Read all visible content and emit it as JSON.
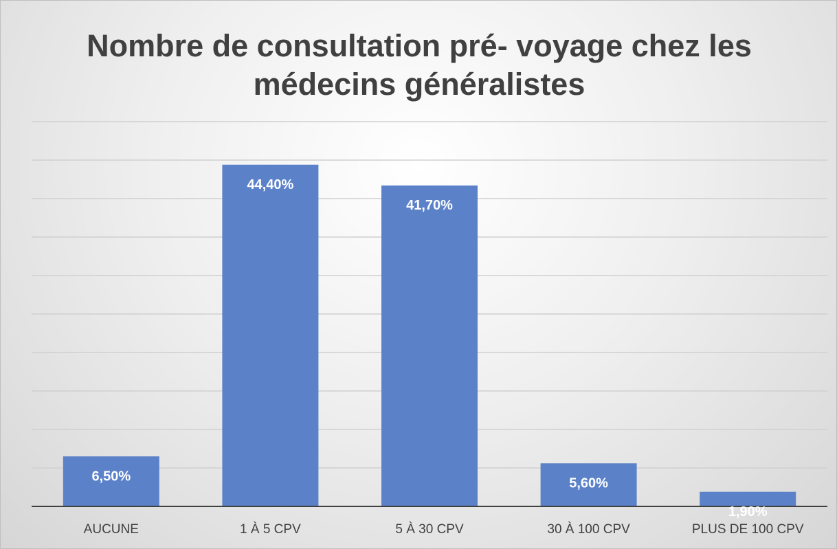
{
  "chart_data": {
    "type": "bar",
    "title": "Nombre de consultation pré- voyage chez les médecins généralistes",
    "categories": [
      "AUCUNE",
      "1 À 5 CPV",
      "5 À 30 CPV",
      "30 À 100 CPV",
      "PLUS DE 100 CPV"
    ],
    "values": [
      6.5,
      44.4,
      41.7,
      5.6,
      1.9
    ],
    "value_labels": [
      "6,50%",
      "44,40%",
      "41,70%",
      "5,60%",
      "1,90%"
    ],
    "color": "#5b82c9",
    "ylim": [
      0,
      50
    ],
    "yticks": [
      0,
      5,
      10,
      15,
      20,
      25,
      30,
      35,
      40,
      45,
      50
    ],
    "grid": true
  }
}
